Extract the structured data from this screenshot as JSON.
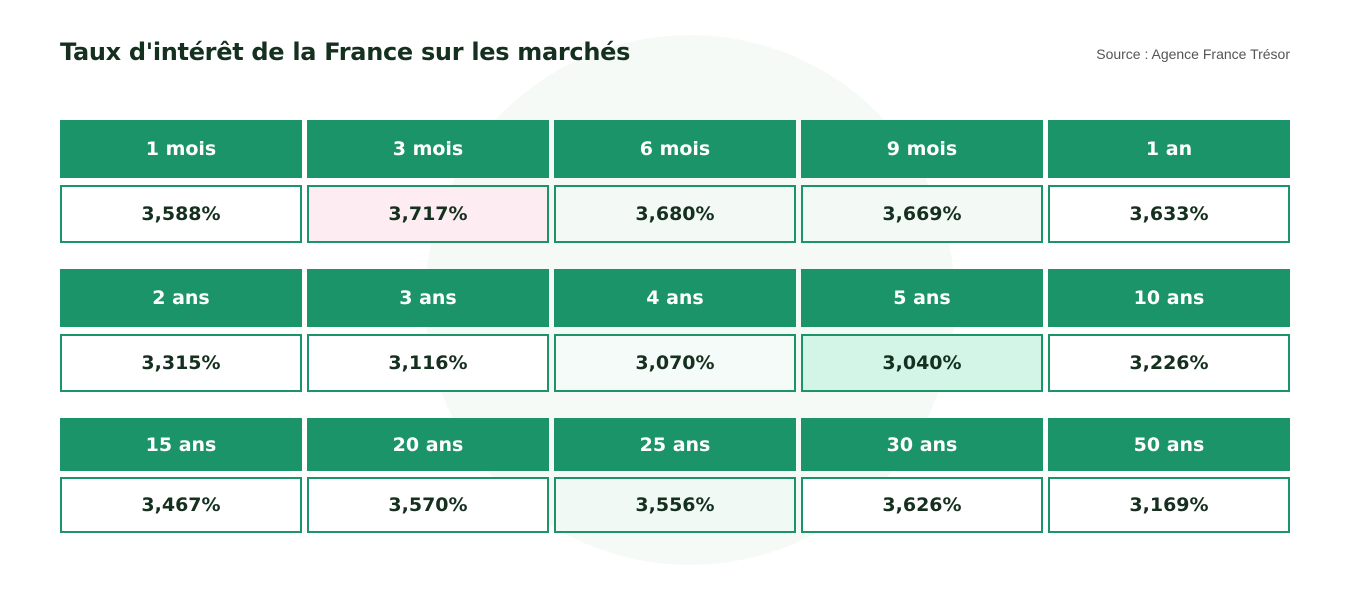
{
  "header": {
    "title": "Taux d'intérêt de la France sur les marchés",
    "source": "Source : Agence France Trésor"
  },
  "grid": [
    {
      "terms": [
        "1 mois",
        "3 mois",
        "6 mois",
        "9 mois",
        "1 an"
      ],
      "rates": [
        "3,588%",
        "3,717%",
        "3,680%",
        "3,669%",
        "3,633%"
      ],
      "fills": [
        "#ffffff",
        "#fdedf2",
        "#f3faf6",
        "#f3faf6",
        "#ffffff"
      ]
    },
    {
      "terms": [
        "2 ans",
        "3 ans",
        "4 ans",
        "5 ans",
        "10 ans"
      ],
      "rates": [
        "3,315%",
        "3,116%",
        "3,070%",
        "3,040%",
        "3,226%"
      ],
      "fills": [
        "#ffffff",
        "#ffffff",
        "#f5fbf8",
        "#d3f5e7",
        "#ffffff"
      ]
    },
    {
      "terms": [
        "15 ans",
        "20 ans",
        "25 ans",
        "30 ans",
        "50 ans"
      ],
      "rates": [
        "3,467%",
        "3,570%",
        "3,556%",
        "3,626%",
        "3,169%"
      ],
      "fills": [
        "#ffffff",
        "#ffffff",
        "#f1f9f5",
        "#ffffff",
        "#ffffff"
      ]
    }
  ]
}
